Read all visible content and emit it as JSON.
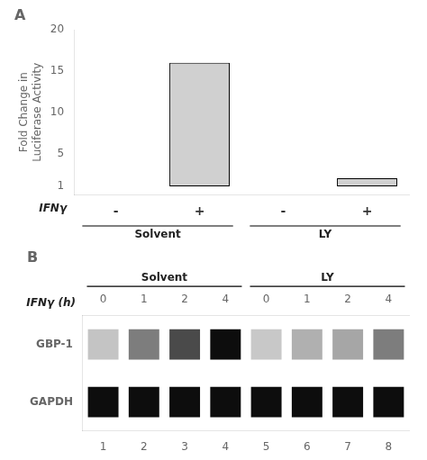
{
  "chart_data": [
    {
      "type": "bar",
      "title": "A",
      "categories": [
        "-",
        "+",
        "-",
        "+"
      ],
      "values": [
        1,
        16,
        1,
        2
      ],
      "base": 1,
      "colors": [
        "#ffffff",
        "#d0d0d0",
        "#ffffff",
        "#d0d0d0"
      ],
      "ylabel": "Fold Change in\nLuciferase Activity",
      "xlabel": "IFNγ",
      "group_labels": [
        "Solvent",
        "LY"
      ],
      "ylim": [
        0,
        20
      ],
      "yticks": [
        1,
        5,
        10,
        15,
        20
      ],
      "grid": false
    },
    {
      "type": "heatmap",
      "title": "B",
      "categories": [
        "1",
        "2",
        "3",
        "4",
        "5",
        "6",
        "7",
        "8"
      ],
      "x2_categories": [
        "0",
        "1",
        "2",
        "4",
        "0",
        "1",
        "2",
        "4"
      ],
      "x2label": "IFNγ (h)",
      "rows": [
        "GBP-1",
        "GAPDH"
      ],
      "cells": [
        [
          0.1,
          0.45,
          0.7,
          1.0,
          0.08,
          0.2,
          0.25,
          0.45
        ],
        [
          1.0,
          1.0,
          1.0,
          1.0,
          1.0,
          1.0,
          1.0,
          1.0
        ]
      ],
      "zlim": [
        0,
        1
      ],
      "group_labels": [
        "Solvent",
        "LY"
      ],
      "grid": false
    }
  ]
}
